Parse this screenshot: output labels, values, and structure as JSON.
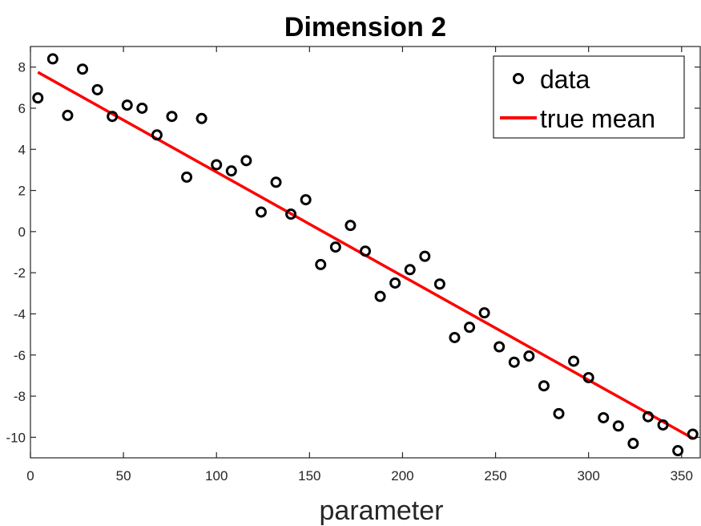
{
  "chart_data": {
    "type": "scatter",
    "title": "Dimension 2",
    "xlabel": "parameter",
    "ylabel": "",
    "xlim": [
      0,
      360
    ],
    "ylim": [
      -11,
      9
    ],
    "xticks": [
      0,
      50,
      100,
      150,
      200,
      250,
      300,
      350
    ],
    "yticks": [
      8,
      6,
      4,
      2,
      0,
      -2,
      -4,
      -6,
      -8,
      -10
    ],
    "legend_position": "top-right",
    "grid": false,
    "colors": {
      "data": "#000000",
      "true_mean": "#ff0000",
      "axis": "#262626"
    },
    "series": [
      {
        "name": "data",
        "kind": "scatter",
        "marker": "circle",
        "x": [
          4,
          12,
          20,
          28,
          36,
          44,
          52,
          60,
          68,
          76,
          84,
          92,
          100,
          108,
          116,
          124,
          132,
          140,
          148,
          156,
          164,
          172,
          180,
          188,
          196,
          204,
          212,
          220,
          228,
          236,
          244,
          252,
          260,
          268,
          276,
          284,
          292,
          300,
          308,
          316,
          324,
          332,
          340,
          348,
          356
        ],
        "y": [
          6.5,
          8.4,
          5.65,
          7.9,
          6.9,
          5.6,
          6.15,
          6.0,
          4.7,
          5.6,
          2.65,
          5.5,
          3.25,
          2.95,
          3.45,
          0.95,
          2.4,
          0.85,
          1.55,
          -1.6,
          -0.75,
          0.3,
          -0.95,
          -3.15,
          -2.5,
          -1.85,
          -1.2,
          -2.55,
          -5.15,
          -4.65,
          -3.95,
          -5.6,
          -6.35,
          -6.05,
          -7.5,
          -8.85,
          -6.3,
          -7.1,
          -9.05,
          -9.45,
          -10.3,
          -9.0,
          -9.4,
          -10.65,
          -9.85
        ]
      },
      {
        "name": "true mean",
        "kind": "line",
        "x": [
          4,
          356
        ],
        "y": [
          7.75,
          -10.05
        ]
      }
    ]
  }
}
